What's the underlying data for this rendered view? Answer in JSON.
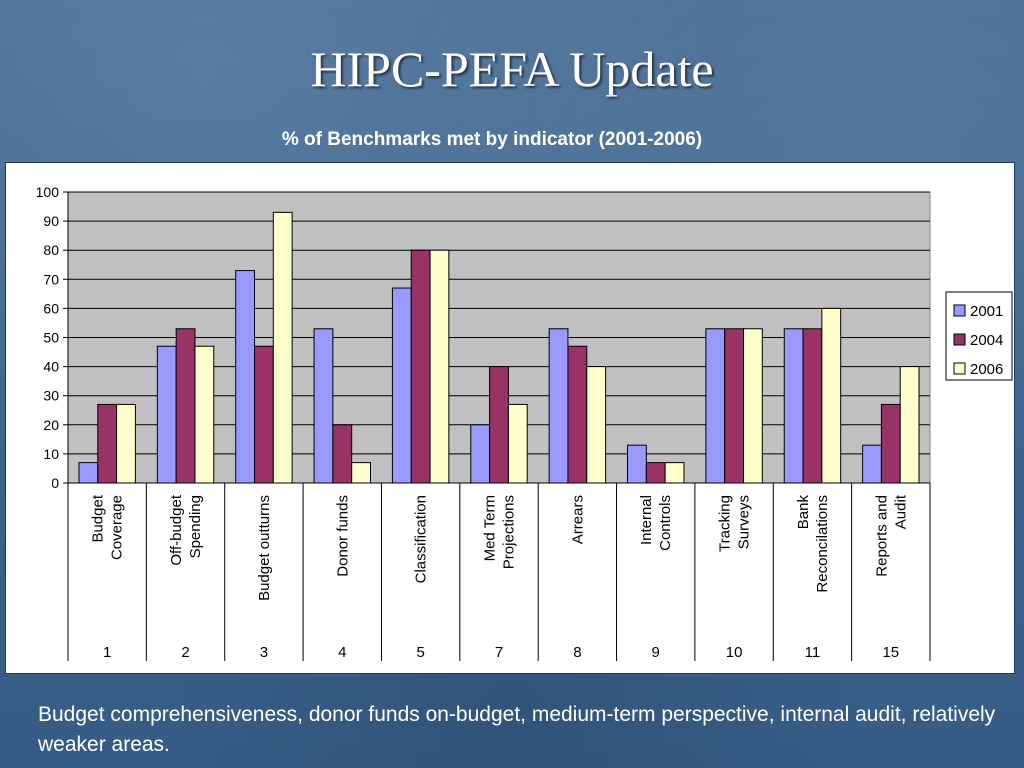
{
  "slide": {
    "title": "HIPC-PEFA Update",
    "footnote": "Budget comprehensiveness, donor funds on-budget, medium-term perspective, internal audit, relatively weaker areas."
  },
  "colors": {
    "background": "#40678f",
    "plot_area": "#c0c0c0"
  },
  "chart_data": {
    "type": "bar",
    "title": "% of Benchmarks met by indicator (2001-2006)",
    "xlabel": "",
    "ylabel": "",
    "ylim": [
      0,
      100
    ],
    "yticks": [
      0,
      10,
      20,
      30,
      40,
      50,
      60,
      70,
      80,
      90,
      100
    ],
    "grid": true,
    "legend_position": "right",
    "categories": [
      {
        "label": [
          "Budget",
          "Coverage"
        ],
        "number": "1"
      },
      {
        "label": [
          "Off-budget",
          "Spending"
        ],
        "number": "2"
      },
      {
        "label": [
          "Budget outturns"
        ],
        "number": "3"
      },
      {
        "label": [
          "Donor funds"
        ],
        "number": "4"
      },
      {
        "label": [
          "Classification"
        ],
        "number": "5"
      },
      {
        "label": [
          "Med Term",
          "Projections"
        ],
        "number": "7"
      },
      {
        "label": [
          "Arrears"
        ],
        "number": "8"
      },
      {
        "label": [
          "Internal",
          "Controls"
        ],
        "number": "9"
      },
      {
        "label": [
          "Tracking",
          "Surveys"
        ],
        "number": "10"
      },
      {
        "label": [
          "Bank",
          "Reconcilations"
        ],
        "number": "11"
      },
      {
        "label": [
          "Reports and",
          "Audit"
        ],
        "number": "15"
      }
    ],
    "series": [
      {
        "name": "2001",
        "color": "#9999ff",
        "values": [
          7,
          47,
          73,
          53,
          67,
          20,
          53,
          13,
          53,
          53,
          13
        ]
      },
      {
        "name": "2004",
        "color": "#993366",
        "values": [
          27,
          53,
          47,
          20,
          80,
          40,
          47,
          7,
          53,
          53,
          27
        ]
      },
      {
        "name": "2006",
        "color": "#ffffcc",
        "values": [
          27,
          47,
          93,
          7,
          80,
          27,
          40,
          7,
          53,
          60,
          40
        ]
      }
    ]
  }
}
